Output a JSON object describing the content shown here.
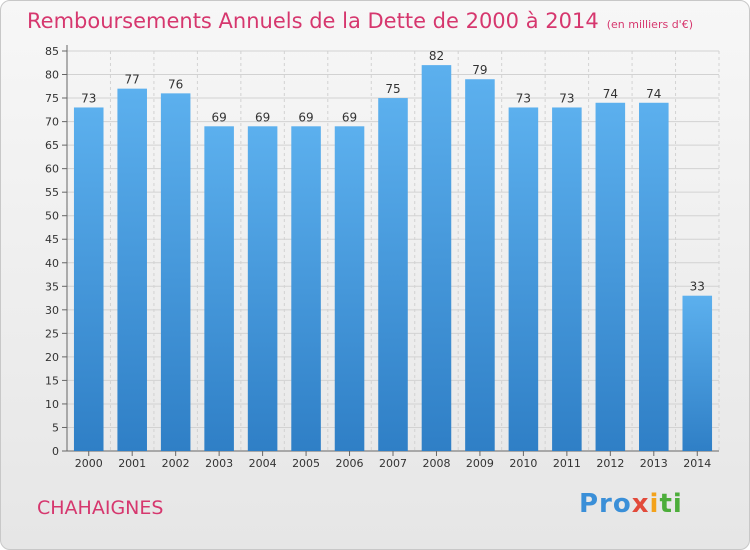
{
  "chart_data": {
    "type": "bar",
    "title": "Remboursements Annuels de la Dette de 2000 à 2014",
    "subtitle": "(en milliers d'€)",
    "categories": [
      "2000",
      "2001",
      "2002",
      "2003",
      "2004",
      "2005",
      "2006",
      "2007",
      "2008",
      "2009",
      "2010",
      "2011",
      "2012",
      "2013",
      "2014"
    ],
    "values": [
      73,
      77,
      76,
      69,
      69,
      69,
      69,
      75,
      82,
      79,
      73,
      73,
      74,
      74,
      33
    ],
    "ylim": [
      0,
      85
    ],
    "yticks": [
      0,
      5,
      10,
      15,
      20,
      25,
      30,
      35,
      40,
      45,
      50,
      55,
      60,
      65,
      70,
      75,
      80,
      85
    ],
    "grid": true,
    "bar_color": "#4a9fe0",
    "bar_color_dark": "#2f7fc6"
  },
  "place_name": "CHAHAIGNES",
  "logo": {
    "parts": [
      "Pro",
      "x",
      "i",
      "ti"
    ]
  }
}
